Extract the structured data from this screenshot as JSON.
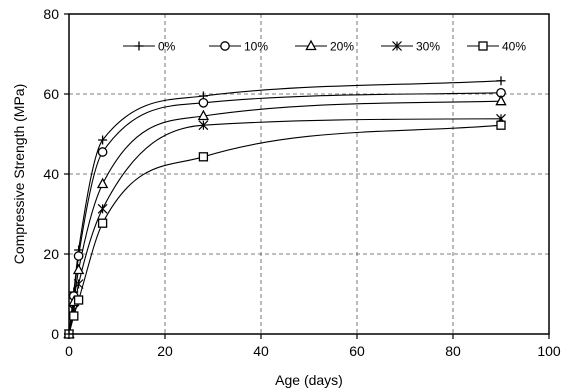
{
  "chart_data": {
    "type": "line",
    "title": "",
    "xlabel": "Age (days)",
    "ylabel": "Compressive Strength (MPa)",
    "xlim": [
      0,
      100
    ],
    "ylim": [
      0,
      80
    ],
    "x_ticks": [
      0,
      20,
      40,
      60,
      80,
      100
    ],
    "y_ticks": [
      0,
      20,
      40,
      60,
      80
    ],
    "grid": true,
    "grid_style": "dashed",
    "legend_position": "top",
    "series": [
      {
        "name": "0%",
        "marker": "plus",
        "x": [
          0,
          1,
          2,
          7,
          28,
          90
        ],
        "y": [
          0,
          10.5,
          21,
          48.5,
          59.5,
          63.3
        ]
      },
      {
        "name": "10%",
        "marker": "circle",
        "x": [
          0,
          1,
          2,
          7,
          28,
          90
        ],
        "y": [
          0,
          9.5,
          19.5,
          45.5,
          57.8,
          60.3
        ]
      },
      {
        "name": "20%",
        "marker": "triangle",
        "x": [
          0,
          1,
          2,
          7,
          28,
          90
        ],
        "y": [
          0,
          8,
          16,
          37.5,
          54.5,
          58.2
        ]
      },
      {
        "name": "30%",
        "marker": "asterisk",
        "x": [
          0,
          1,
          2,
          7,
          28,
          90
        ],
        "y": [
          0,
          6,
          12.5,
          31.3,
          52.2,
          53.8
        ]
      },
      {
        "name": "40%",
        "marker": "square",
        "x": [
          0,
          1,
          2,
          7,
          28,
          90
        ],
        "y": [
          0,
          4.5,
          8.5,
          27.7,
          44.3,
          52.2
        ]
      }
    ]
  }
}
